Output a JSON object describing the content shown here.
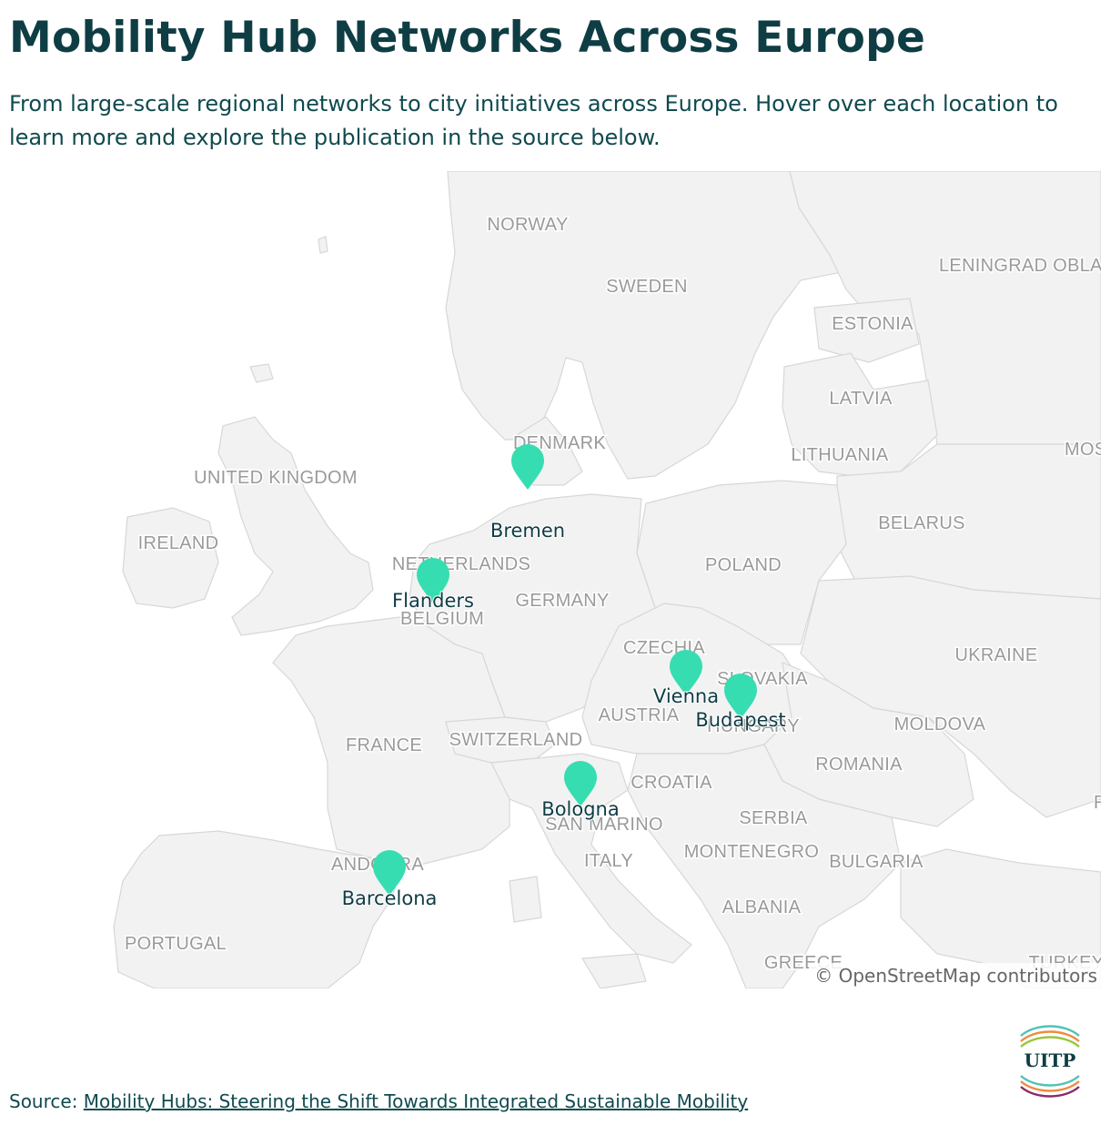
{
  "header": {
    "title": "Mobility Hub Networks Across Europe",
    "subtitle": "From large-scale regional networks to city initiatives across Europe. Hover over each location to learn more and explore the publication in the source below."
  },
  "map": {
    "attribution": "© OpenStreetMap contributors",
    "country_labels": [
      "NORWAY",
      "SWEDEN",
      "LENINGRAD OBLAST",
      "ESTONIA",
      "LATVIA",
      "LITHUANIA",
      "MOS",
      "DENMARK",
      "UNITED KINGDOM",
      "IRELAND",
      "BELARUS",
      "POLAND",
      "NETHERLANDS",
      "GERMANY",
      "BELGIUM",
      "CZECHIA",
      "SLOVAKIA",
      "UKRAINE",
      "AUSTRIA",
      "HUNGARY",
      "MOLDOVA",
      "FRANCE",
      "SWITZERLAND",
      "ROMANIA",
      "CROATIA",
      "SAN MARINO",
      "SERBIA",
      "MONTENEGRO",
      "BULGARIA",
      "ITALY",
      "ANDORRA",
      "PORTUGAL",
      "ALBANIA",
      "GREECE",
      "TURKEY",
      "R"
    ],
    "markers": [
      "Bremen",
      "Flanders",
      "Vienna",
      "Budapest",
      "Bologna",
      "Barcelona"
    ],
    "marker_color": "#36ddb1",
    "land_color": "#f2f2f2",
    "border_color": "#d7d7d7"
  },
  "footer": {
    "source_prefix": "Source: ",
    "source_link": "Mobility Hubs: Steering the Shift Towards Integrated Sustainable Mobility",
    "logo_text": "UITP"
  }
}
